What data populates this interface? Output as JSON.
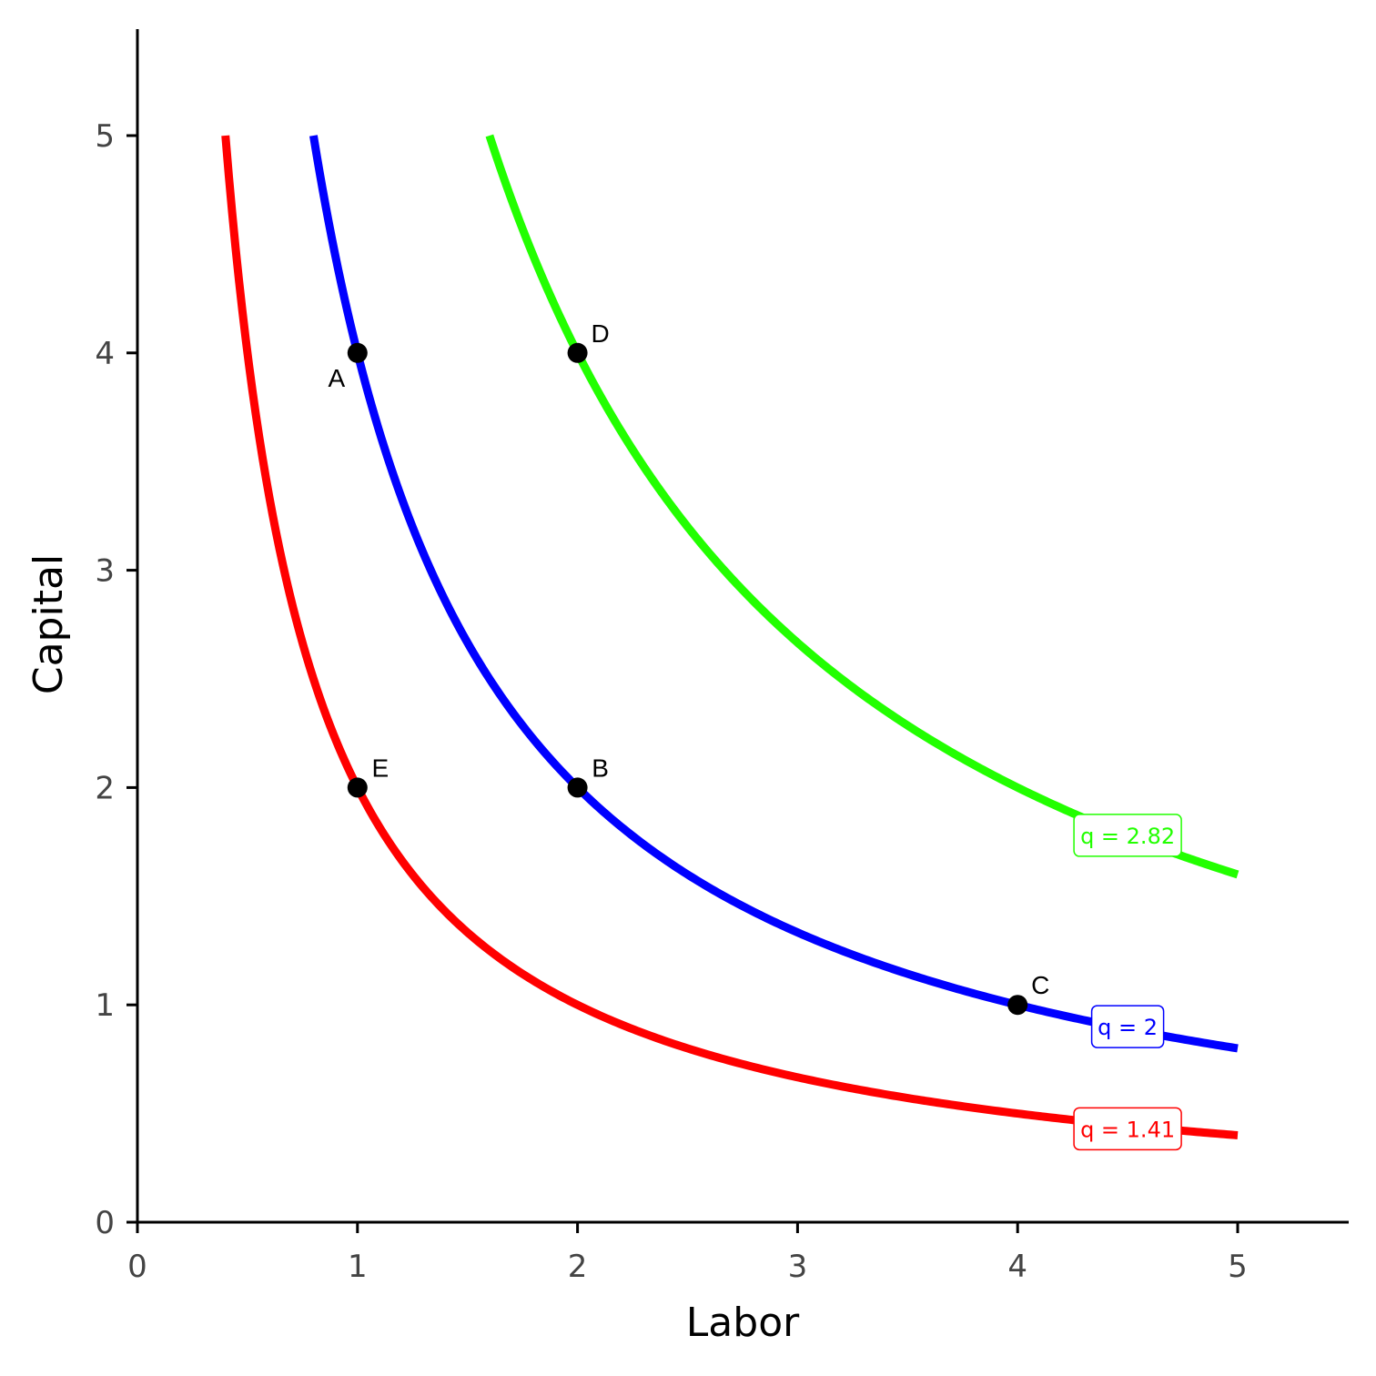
{
  "chart_data": {
    "type": "line",
    "title": "",
    "xlabel": "Labor",
    "ylabel": "Capital",
    "xlim": [
      0,
      5.5
    ],
    "ylim": [
      0,
      5.5
    ],
    "xticks": [
      0,
      1,
      2,
      3,
      4,
      5
    ],
    "yticks": [
      0,
      1,
      2,
      3,
      4,
      5
    ],
    "xtick_labels": [
      "0",
      "1",
      "2",
      "3",
      "4",
      "5"
    ],
    "ytick_labels": [
      "0",
      "1",
      "2",
      "3",
      "4",
      "5"
    ],
    "grid": false,
    "series": [
      {
        "name": "q = 1.41",
        "label": "q = 1.41",
        "color": "#ff0000",
        "product": 2,
        "x_range": [
          0.4,
          5
        ],
        "label_at": [
          4.5,
          0.43
        ]
      },
      {
        "name": "q = 2",
        "label": "q = 2",
        "color": "#0000ff",
        "product": 4,
        "x_range": [
          0.8,
          5
        ],
        "label_at": [
          4.5,
          0.9
        ]
      },
      {
        "name": "q = 2.82",
        "label": "q = 2.82",
        "color": "#22ff00",
        "product": 8,
        "x_range": [
          1.6,
          5
        ],
        "label_at": [
          4.5,
          1.78
        ]
      }
    ],
    "points": [
      {
        "label": "A",
        "x": 1,
        "y": 4,
        "label_pos": "bottom-left"
      },
      {
        "label": "B",
        "x": 2,
        "y": 2,
        "label_pos": "top-right"
      },
      {
        "label": "C",
        "x": 4,
        "y": 1,
        "label_pos": "top-right"
      },
      {
        "label": "D",
        "x": 2,
        "y": 4,
        "label_pos": "top-right"
      },
      {
        "label": "E",
        "x": 1,
        "y": 2,
        "label_pos": "top-right"
      }
    ]
  }
}
